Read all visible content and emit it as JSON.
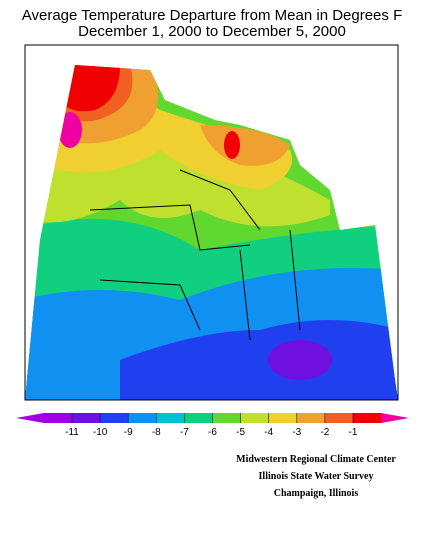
{
  "title": [
    "Average Temperature Departure from Mean in Degrees F",
    "December 1, 2000 to December 5, 2000"
  ],
  "legend": {
    "ticks": [
      -11,
      -10,
      -9,
      -8,
      -7,
      -6,
      -5,
      -4,
      -3,
      -2,
      -1
    ],
    "colors": [
      "#a000e0",
      "#7010e0",
      "#2040f0",
      "#1090f0",
      "#00c0d8",
      "#10d080",
      "#60d830",
      "#c0e030",
      "#f0d030",
      "#f0a030",
      "#f06020",
      "#f00000",
      "#f000a0"
    ]
  },
  "credits": [
    "Midwestern Regional Climate Center",
    "Illinois State Water Survey",
    "Champaign, Illinois"
  ]
}
